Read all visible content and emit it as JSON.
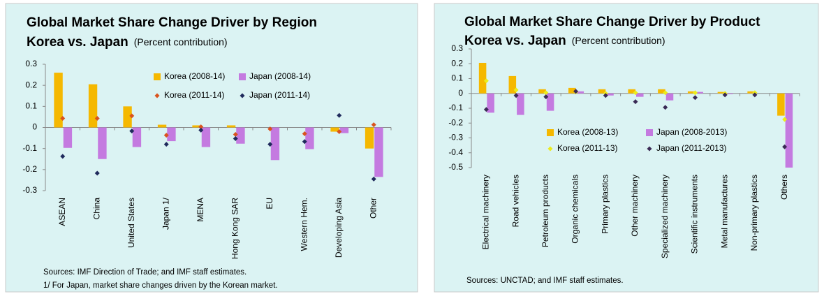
{
  "chart_data": [
    {
      "type": "bar",
      "title": "Global Market Share Change Driver by Region",
      "subtitle": "Korea vs. Japan",
      "unit_note": "(Percent contribution)",
      "categories": [
        "ASEAN",
        "China",
        "United States",
        "Japan 1/",
        "MENA",
        "Hong Kong SAR",
        "EU",
        "Western Hem.",
        "Developing Asia",
        "Other"
      ],
      "series": [
        {
          "name": "Korea (2008-14)",
          "color": "#f5b800",
          "marker": "bar",
          "values": [
            0.26,
            0.205,
            0.1,
            0.013,
            0.01,
            0.01,
            0,
            0,
            -0.02,
            -0.1
          ]
        },
        {
          "name": "Japan (2008-14)",
          "color": "#c47ae0",
          "marker": "bar",
          "values": [
            -0.097,
            -0.15,
            -0.093,
            -0.065,
            -0.093,
            -0.077,
            -0.155,
            -0.103,
            -0.027,
            -0.235
          ]
        },
        {
          "name": "Korea (2011-14)",
          "color": "#d9531e",
          "marker": "diamond",
          "values": [
            0.043,
            0.043,
            0.055,
            -0.037,
            0.003,
            -0.033,
            -0.007,
            -0.03,
            -0.02,
            0.013
          ]
        },
        {
          "name": "Japan (2011-14)",
          "color": "#1f2a5c",
          "marker": "diamond",
          "values": [
            -0.137,
            -0.217,
            -0.017,
            -0.08,
            -0.013,
            -0.053,
            -0.08,
            -0.067,
            0.057,
            -0.245
          ]
        }
      ],
      "ylim": [
        -0.3,
        0.3
      ],
      "yticks": [
        0.3,
        0.2,
        0.1,
        0,
        -0.1,
        -0.2,
        -0.3
      ],
      "notes": [
        "Sources: IMF Direction of Trade; and IMF staff estimates.",
        "1/ For Japan, market share changes driven by the Korean market."
      ]
    },
    {
      "type": "bar",
      "title": "Global Market Share Change Driver by Product",
      "subtitle": "Korea vs. Japan",
      "unit_note": "(Percent contribution)",
      "categories": [
        "Electrical machinery",
        "Road vehicles",
        "Petroleum products",
        "Organic chemicals",
        "Primary plastics",
        "Other machinery",
        "Specialized machinery",
        "Scientific instruments",
        "Metal manufactures",
        "Non-primary plastics",
        "Others"
      ],
      "series": [
        {
          "name": "Korea (2008-13)",
          "color": "#f5b800",
          "marker": "bar",
          "values": [
            0.206,
            0.117,
            0.028,
            0.037,
            0.028,
            0.028,
            0.028,
            0.014,
            0.01,
            0.014,
            -0.15
          ]
        },
        {
          "name": "Japan (2008-2013)",
          "color": "#c47ae0",
          "marker": "bar",
          "values": [
            -0.13,
            -0.145,
            -0.117,
            0.014,
            -0.014,
            -0.023,
            -0.047,
            0.01,
            -0.005,
            0,
            -0.5
          ]
        },
        {
          "name": "Korea (2011-13)",
          "color": "#ecec1a",
          "marker": "diamond",
          "values": [
            0.085,
            0.023,
            0.005,
            0.01,
            0,
            0.005,
            0.005,
            0.005,
            0,
            0.005,
            -0.175
          ]
        },
        {
          "name": "Japan (2011-2013)",
          "color": "#3a2a55",
          "marker": "diamond",
          "values": [
            -0.108,
            -0.014,
            -0.023,
            0.014,
            -0.014,
            -0.056,
            -0.094,
            -0.028,
            -0.01,
            -0.01,
            -0.36
          ]
        }
      ],
      "ylim": [
        -0.5,
        0.3
      ],
      "yticks": [
        0.3,
        0.2,
        0.1,
        0,
        -0.1,
        -0.2,
        -0.3,
        -0.4,
        -0.5
      ],
      "notes": [
        "Sources:  UNCTAD; and IMF staff estimates."
      ]
    }
  ]
}
